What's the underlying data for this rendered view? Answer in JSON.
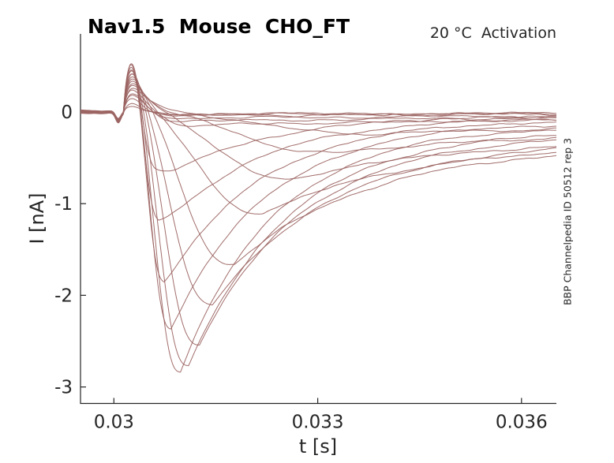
{
  "figure": {
    "background": "#ffffff"
  },
  "chart_data": {
    "type": "line",
    "title": "Nav1.5  Mouse  CHO_FT",
    "annotation": "20 °C  Activation",
    "side_label": "BBP Channelpedia ID 50512 rep 3",
    "xlabel": "t [s]",
    "ylabel": "I [nA]",
    "xlim": [
      0.029509,
      0.036513
    ],
    "ylim": [
      -3.18,
      0.852
    ],
    "xticks": [
      0.03,
      0.033,
      0.036
    ],
    "xtick_labels": [
      "0.03",
      "0.033",
      "0.036"
    ],
    "yticks": [
      0,
      -1,
      -2,
      -3
    ],
    "ytick_labels": [
      "0",
      "-1",
      "-2",
      "-3"
    ],
    "grid": false,
    "legend": false,
    "colors": {
      "trace": "#9c6563",
      "axis": "#262626",
      "text": "#262626",
      "title": "#000000"
    },
    "stimulus": {
      "act_start_s": 0.03021,
      "spike_start_s": 0.03014,
      "spike_tau_s": 0.00014,
      "dip_center_s": 0.030065,
      "dip_sigma_s": 5.5e-05,
      "dip_amp_nA": -0.1,
      "noise_nA": 0.0085,
      "tail_asymptote_ratio": 0.75
    },
    "traces": [
      {
        "peak_nA": -0.02,
        "t_peak_s": 0.0305,
        "end_nA": -0.015,
        "spike_nA": 0.06
      },
      {
        "peak_nA": -0.03,
        "t_peak_s": 0.03055,
        "end_nA": -0.02,
        "spike_nA": 0.1
      },
      {
        "peak_nA": -0.05,
        "t_peak_s": 0.0306,
        "end_nA": -0.03,
        "spike_nA": 0.14
      },
      {
        "peak_nA": -0.07,
        "t_peak_s": 0.0307,
        "end_nA": -0.045,
        "spike_nA": 0.18
      },
      {
        "peak_nA": -0.1,
        "t_peak_s": 0.03085,
        "end_nA": -0.06,
        "spike_nA": 0.21
      },
      {
        "peak_nA": -0.15,
        "t_peak_s": 0.0311,
        "end_nA": -0.09,
        "spike_nA": 0.24
      },
      {
        "peak_nA": -0.24,
        "t_peak_s": 0.0339,
        "end_nA": -0.19,
        "spike_nA": 0.26
      },
      {
        "peak_nA": -0.45,
        "t_peak_s": 0.0333,
        "end_nA": -0.29,
        "spike_nA": 0.29
      },
      {
        "peak_nA": -0.72,
        "t_peak_s": 0.0327,
        "end_nA": -0.37,
        "spike_nA": 0.31
      },
      {
        "peak_nA": -1.1,
        "t_peak_s": 0.0322,
        "end_nA": -0.44,
        "spike_nA": 0.34
      },
      {
        "peak_nA": -1.66,
        "t_peak_s": 0.03178,
        "end_nA": -0.47,
        "spike_nA": 0.36
      },
      {
        "peak_nA": -2.1,
        "t_peak_s": 0.03145,
        "end_nA": -0.4,
        "spike_nA": 0.38
      },
      {
        "peak_nA": -2.54,
        "t_peak_s": 0.03126,
        "end_nA": -0.31,
        "spike_nA": 0.41
      },
      {
        "peak_nA": -2.78,
        "t_peak_s": 0.0311,
        "end_nA": -0.25,
        "spike_nA": 0.43
      },
      {
        "peak_nA": -2.85,
        "t_peak_s": 0.03098,
        "end_nA": -0.19,
        "spike_nA": 0.46
      },
      {
        "peak_nA": -2.41,
        "t_peak_s": 0.03084,
        "end_nA": -0.14,
        "spike_nA": 0.48
      },
      {
        "peak_nA": -1.94,
        "t_peak_s": 0.03074,
        "end_nA": -0.11,
        "spike_nA": 0.51
      },
      {
        "peak_nA": -1.32,
        "t_peak_s": 0.03066,
        "end_nA": -0.08,
        "spike_nA": 0.53
      },
      {
        "peak_nA": -0.8,
        "t_peak_s": 0.0306,
        "end_nA": -0.055,
        "spike_nA": 0.55
      }
    ]
  }
}
